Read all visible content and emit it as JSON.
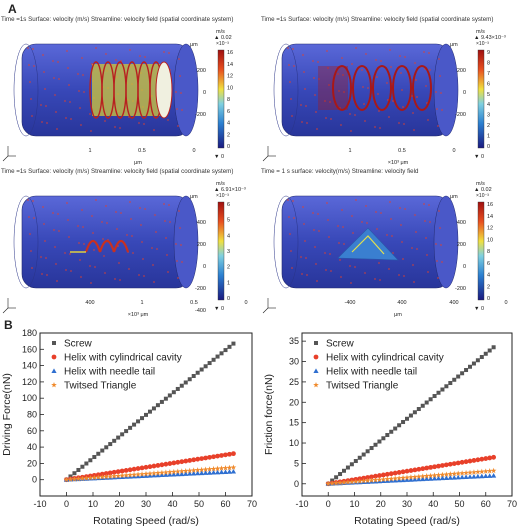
{
  "panel_labels": {
    "a": "A",
    "b": "B"
  },
  "sims": [
    {
      "title": "Time =1s Surface: velocity (m/s) Streamline: velocity field (spatial coordinate system)",
      "unit_label": "μm",
      "legend_unit": "m/s",
      "legend_max": "▲ 0.02",
      "legend_exp": "×10⁻³",
      "legend_ticks": [
        "16",
        "14",
        "12",
        "10",
        "8",
        "6",
        "4",
        "2",
        "0"
      ],
      "legend_min": "▼ 0",
      "axis_ticks": [
        "200",
        "0",
        "-200",
        "1",
        "0.5",
        "0"
      ],
      "axis_unit": "μm"
    },
    {
      "title": "Time =1s Surface: velocity (m/s) Streamline: velocity field (spatial coordinate system)",
      "unit_label": "μm",
      "legend_unit": "m/s",
      "legend_max": "▲ 9.43×10⁻³",
      "legend_exp": "×10⁻³",
      "legend_ticks": [
        "9",
        "8",
        "7",
        "6",
        "5",
        "4",
        "3",
        "2",
        "1",
        "0"
      ],
      "legend_min": "▼ 0",
      "axis_ticks": [
        "200",
        "0",
        "-200",
        "1",
        "0.5",
        "0"
      ],
      "axis_unit": "×10³ μm"
    },
    {
      "title": "Time =1s Surface: velocity (m/s) Streamline: velocity field (spatial coordinate system)",
      "unit_label": "μm",
      "legend_unit": "m/s",
      "legend_max": "▲ 6.91×10⁻³",
      "legend_exp": "×10⁻³",
      "legend_ticks": [
        "6",
        "5",
        "4",
        "3",
        "2",
        "1",
        "0"
      ],
      "legend_min": "▼ 0",
      "axis_ticks": [
        "400",
        "200",
        "0",
        "-200",
        "-400",
        "400",
        "1",
        "0.5",
        "0"
      ],
      "axis_unit": "×10³ μm"
    },
    {
      "title": "Time = 1 s   surface: velocity(m/s) Streamline: velocity field",
      "unit_label": "μm",
      "legend_unit": "m/s",
      "legend_max": "▲ 0.02",
      "legend_exp": "×10⁻³",
      "legend_ticks": [
        "16",
        "14",
        "12",
        "10",
        "8",
        "6",
        "4",
        "2",
        "0"
      ],
      "legend_min": "▼ 0",
      "axis_ticks": [
        "400",
        "200",
        "0",
        "-200",
        "-400",
        "400",
        "400",
        "0"
      ],
      "axis_unit": "μm"
    }
  ],
  "colors": {
    "screw": "#555555",
    "helix_cavity": "#e8402a",
    "needle": "#2f6fd0",
    "triangle": "#f08a2c",
    "cylinder": "#3848b8"
  },
  "chart_data": [
    {
      "type": "line",
      "xlabel": "Rotating Speed (rad/s)",
      "ylabel": "Driving Force(nN)",
      "xlim": [
        -10,
        70
      ],
      "ylim": [
        -20,
        180
      ],
      "xticks": [
        "-10",
        "0",
        "10",
        "20",
        "30",
        "40",
        "50",
        "60",
        "70"
      ],
      "yticks": [
        "0",
        "20",
        "40",
        "60",
        "80",
        "100",
        "120",
        "140",
        "160",
        "180"
      ],
      "x_range": [
        0,
        63
      ],
      "series": [
        {
          "name": "Screw",
          "marker": "square",
          "y_end": 167
        },
        {
          "name": "Helix with cylindrical cavity",
          "marker": "circle",
          "y_end": 32
        },
        {
          "name": "Helix with needle tail",
          "marker": "triangle",
          "y_end": 10
        },
        {
          "name": "Twitsed Triangle",
          "marker": "star",
          "y_end": 15
        }
      ],
      "legend": "top-left"
    },
    {
      "type": "line",
      "xlabel": "Rotating Speed (rad/s)",
      "ylabel": "Friction force(nN)",
      "xlim": [
        -10,
        70
      ],
      "ylim": [
        -3,
        37
      ],
      "xticks": [
        "-10",
        "0",
        "10",
        "20",
        "30",
        "40",
        "50",
        "60",
        "70"
      ],
      "yticks": [
        "0",
        "5",
        "10",
        "15",
        "20",
        "25",
        "30",
        "35"
      ],
      "x_range": [
        0,
        63
      ],
      "series": [
        {
          "name": "Screw",
          "marker": "square",
          "y_end": 33.5
        },
        {
          "name": "Helix with cylindrical cavity",
          "marker": "circle",
          "y_end": 6.5
        },
        {
          "name": "Helix with needle tail",
          "marker": "triangle",
          "y_end": 2
        },
        {
          "name": "Twitsed Triangle",
          "marker": "star",
          "y_end": 3.2
        }
      ],
      "legend": "top-left"
    }
  ]
}
